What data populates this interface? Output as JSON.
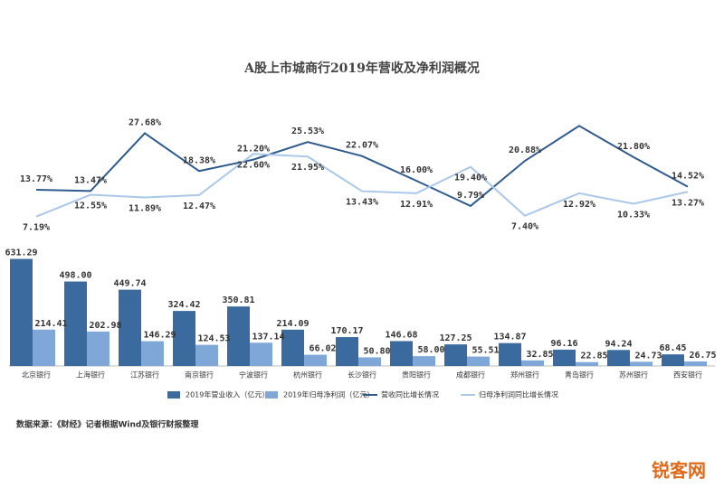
{
  "chart_data": {
    "type": "bar",
    "title": "A股上市城商行2019年营收及净利润概况",
    "categories": [
      "北京银行",
      "上海银行",
      "江苏银行",
      "南京银行",
      "宁波银行",
      "杭州银行",
      "长沙银行",
      "贵阳银行",
      "成都银行",
      "郑州银行",
      "青岛银行",
      "苏州银行",
      "西安银行"
    ],
    "ylim": [
      0,
      650
    ],
    "y2lim": [
      0,
      30
    ],
    "series": [
      {
        "name": "2019年营业收入（亿元）",
        "type": "bar",
        "color": "#3b6b9e",
        "values": [
          631.29,
          498.0,
          449.74,
          324.42,
          350.81,
          214.09,
          170.17,
          146.68,
          127.25,
          134.87,
          96.16,
          94.24,
          68.45
        ],
        "value_labels": [
          "631.29",
          "498.00",
          "449.74",
          "324.42",
          "350.81",
          "214.09",
          "170.17",
          "146.68",
          "127.25",
          "134.87",
          "96.16",
          "94.24",
          "68.45"
        ]
      },
      {
        "name": "2019年归母净利润（亿元）",
        "type": "bar",
        "color": "#7fa8d8",
        "values": [
          214.41,
          202.98,
          146.29,
          124.53,
          137.14,
          66.02,
          50.8,
          58.0,
          55.51,
          32.85,
          22.85,
          24.73,
          26.75
        ],
        "value_labels": [
          "214.41",
          "202.98",
          "146.29",
          "124.53",
          "137.14",
          "66.02",
          "50.80",
          "58.00",
          "55.51",
          "32.85",
          "22.85",
          "24.73",
          "26.75"
        ]
      },
      {
        "name": "营收同比增长情况",
        "type": "line",
        "axis": "y2",
        "color": "#2f5b8c",
        "values": [
          13.77,
          13.47,
          27.68,
          18.38,
          21.2,
          25.53,
          22.07,
          16.0,
          9.79,
          20.88,
          29.5,
          21.8,
          14.52
        ],
        "value_labels": [
          "13.77%",
          "13.47%",
          "27.68%",
          "18.38%",
          "21.20%",
          "25.53%",
          "22.07%",
          "16.00%",
          "9.79%",
          "20.88%",
          null,
          "21.80%",
          "14.52%"
        ]
      },
      {
        "name": "归母净利润同比增长情况",
        "type": "line",
        "axis": "y2",
        "color": "#a9c8ea",
        "values": [
          7.19,
          12.55,
          11.89,
          12.47,
          22.6,
          21.95,
          13.43,
          12.91,
          19.4,
          7.4,
          12.92,
          10.33,
          13.27
        ],
        "value_labels": [
          "7.19%",
          "12.55%",
          "11.89%",
          "12.47%",
          "22.60%",
          "21.95%",
          "13.43%",
          "12.91%",
          "19.40%",
          "7.40%",
          "12.92%",
          "10.33%",
          "13.27%"
        ]
      }
    ],
    "source": "数据来源：《财经》记者根据Wind及银行财报整理",
    "watermark": "锐客网"
  }
}
